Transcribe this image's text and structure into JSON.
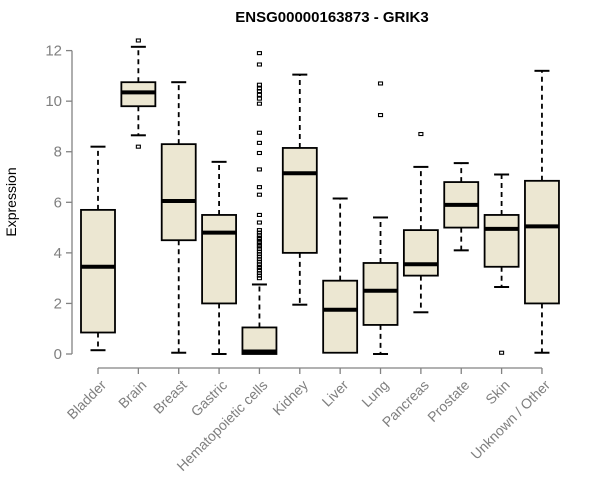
{
  "chart_data": {
    "type": "boxplot",
    "title": "ENSG00000163873 - GRIK3",
    "ylabel": "Expression",
    "xlabel": "",
    "ylim": [
      0,
      12
    ],
    "yticks": [
      0,
      2,
      4,
      6,
      8,
      10,
      12
    ],
    "grid": false,
    "legend": "none",
    "categories": [
      "Bladder",
      "Brain",
      "Breast",
      "Gastric",
      "Hematopoietic cells",
      "Kidney",
      "Liver",
      "Lung",
      "Pancreas",
      "Prostate",
      "Skin",
      "Unknown / Other"
    ],
    "boxes": [
      {
        "name": "Bladder",
        "low": 0.15,
        "q1": 0.85,
        "median": 3.45,
        "q3": 5.7,
        "high": 8.2,
        "outliers": []
      },
      {
        "name": "Brain",
        "low": 8.65,
        "q1": 9.8,
        "median": 10.35,
        "q3": 10.75,
        "high": 12.15,
        "outliers": [
          12.4,
          8.2
        ]
      },
      {
        "name": "Breast",
        "low": 0.05,
        "q1": 4.5,
        "median": 6.05,
        "q3": 8.3,
        "high": 10.75,
        "outliers": []
      },
      {
        "name": "Gastric",
        "low": 0.0,
        "q1": 2.0,
        "median": 4.8,
        "q3": 5.5,
        "high": 7.6,
        "outliers": []
      },
      {
        "name": "Hematopoietic cells",
        "low": 0.0,
        "q1": 0.0,
        "median": 0.1,
        "q3": 1.05,
        "high": 2.75,
        "outliers": [
          11.9,
          11.45,
          10.65,
          10.5,
          10.4,
          10.25,
          10.1,
          9.9,
          8.75,
          8.35,
          7.95,
          7.3,
          6.6,
          6.3,
          5.5,
          5.2,
          4.9,
          4.8,
          4.7,
          4.6,
          4.55,
          4.45,
          4.4,
          4.3,
          4.25,
          4.15,
          4.05,
          3.95,
          3.85,
          3.75,
          3.65,
          3.55,
          3.45,
          3.4,
          3.3,
          3.2,
          3.1,
          3.0
        ]
      },
      {
        "name": "Kidney",
        "low": 1.95,
        "q1": 4.0,
        "median": 7.15,
        "q3": 8.15,
        "high": 11.05,
        "outliers": []
      },
      {
        "name": "Liver",
        "low": 0.0,
        "q1": 0.05,
        "median": 1.75,
        "q3": 2.9,
        "high": 6.15,
        "outliers": []
      },
      {
        "name": "Lung",
        "low": 0.0,
        "q1": 1.15,
        "median": 2.5,
        "q3": 3.6,
        "high": 5.4,
        "outliers": [
          10.7,
          9.45
        ]
      },
      {
        "name": "Pancreas",
        "low": 1.65,
        "q1": 3.1,
        "median": 3.55,
        "q3": 4.9,
        "high": 7.4,
        "outliers": [
          8.7
        ]
      },
      {
        "name": "Prostate",
        "low": 4.1,
        "q1": 5.0,
        "median": 5.9,
        "q3": 6.8,
        "high": 7.55,
        "outliers": []
      },
      {
        "name": "Skin",
        "low": 2.65,
        "q1": 3.45,
        "median": 4.95,
        "q3": 5.5,
        "high": 7.1,
        "outliers": [
          0.05
        ]
      },
      {
        "name": "Unknown / Other",
        "low": 0.05,
        "q1": 2.0,
        "median": 5.05,
        "q3": 6.85,
        "high": 11.2,
        "outliers": []
      }
    ],
    "colors": {
      "box_fill": "#ece7d2",
      "box_border": "#000000",
      "median": "#000000",
      "whisker": "#000000",
      "outlier": "#000000",
      "axis": "#828282",
      "tick_label": "#7f7f7f",
      "x_label": "#7f7f7f",
      "ylabel_color": "#8c8c8c",
      "title_color": "#000000",
      "background": "#ffffff"
    }
  }
}
